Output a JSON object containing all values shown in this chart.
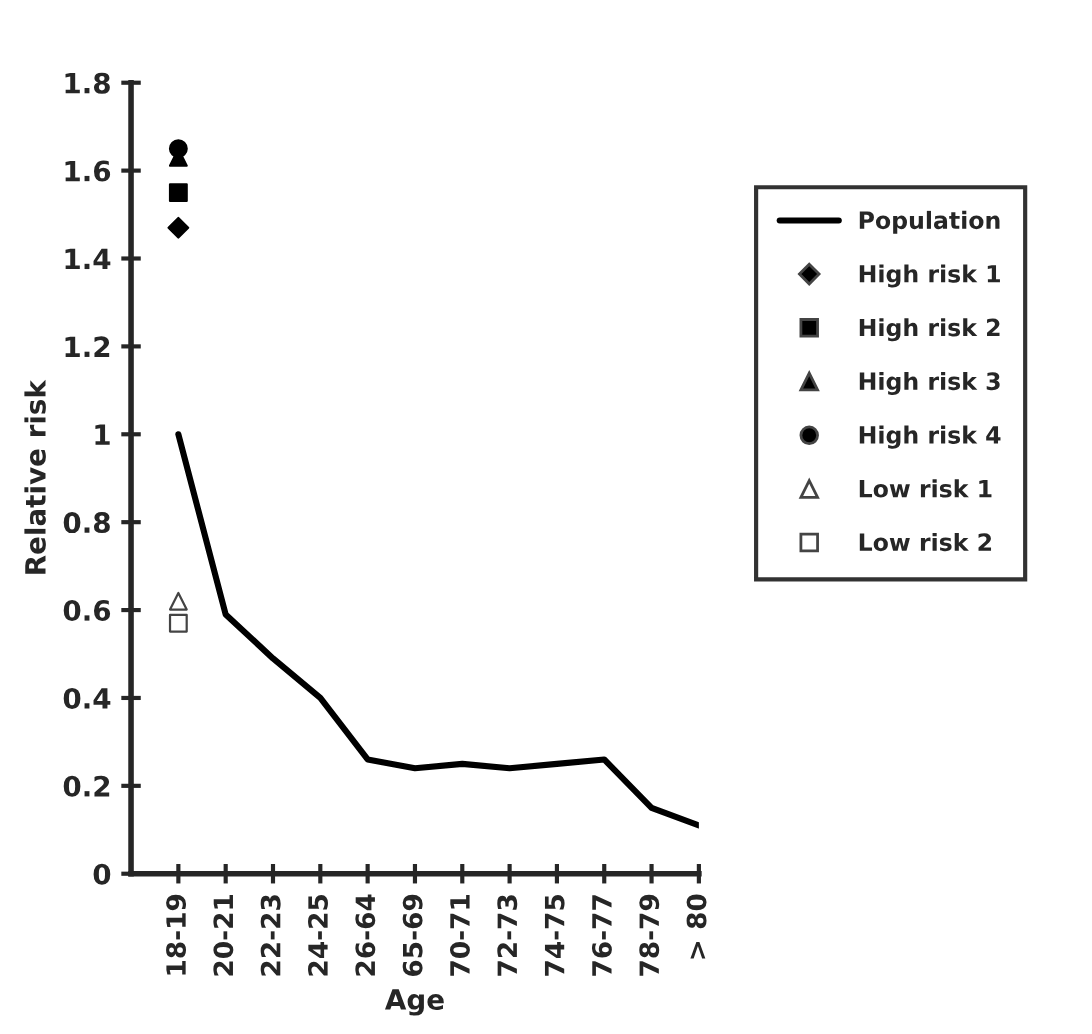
{
  "chart_data": {
    "type": "line",
    "xlabel": "Age",
    "ylabel": "Relative risk",
    "categories": [
      "18-19",
      "20-21",
      "22-23",
      "24-25",
      "26-64",
      "65-69",
      "70-71",
      "72-73",
      "74-75",
      "76-77",
      "78-79",
      "> 80"
    ],
    "series": [
      {
        "name": "Population",
        "color": "#000000",
        "marker": "none",
        "line_style": "solid",
        "values": [
          1.0,
          0.59,
          0.49,
          0.4,
          0.26,
          0.24,
          0.25,
          0.24,
          0.25,
          0.26,
          0.15,
          0.11
        ]
      },
      {
        "name": "High risk 1",
        "type": "scatter",
        "color": "#000000",
        "marker": "diamond",
        "x": [
          "18-19"
        ],
        "values": [
          1.47
        ]
      },
      {
        "name": "High risk 2",
        "type": "scatter",
        "color": "#000000",
        "marker": "square",
        "x": [
          "18-19"
        ],
        "values": [
          1.55
        ]
      },
      {
        "name": "High risk 3",
        "type": "scatter",
        "color": "#000000",
        "marker": "triangle",
        "x": [
          "18-19"
        ],
        "values": [
          1.63
        ]
      },
      {
        "name": "High risk 4",
        "type": "scatter",
        "color": "#000000",
        "marker": "circle",
        "x": [
          "18-19"
        ],
        "values": [
          1.65
        ]
      },
      {
        "name": "Low risk 1",
        "type": "scatter",
        "color": "#ffffff",
        "marker": "triangle",
        "x": [
          "18-19"
        ],
        "values": [
          0.62
        ]
      },
      {
        "name": "Low risk 2",
        "type": "scatter",
        "color": "#ffffff",
        "marker": "square",
        "x": [
          "18-19"
        ],
        "values": [
          0.57
        ]
      }
    ],
    "ylim": [
      0,
      1.8
    ],
    "yticks": [
      0,
      0.2,
      0.4,
      0.6,
      0.8,
      1,
      1.2,
      1.4,
      1.6,
      1.8
    ],
    "grid": false,
    "legend": "right"
  }
}
